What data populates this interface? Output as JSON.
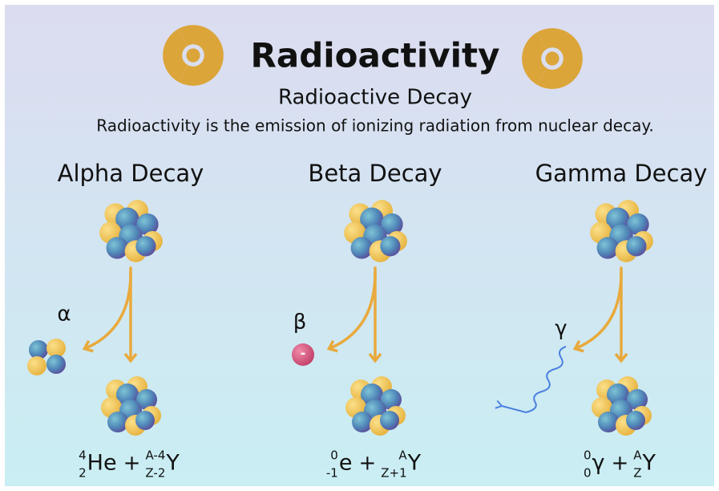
{
  "header": {
    "title": "Radioactivity",
    "subtitle": "Radioactive Decay",
    "description": "Radioactivity is the emission of ionizing radiation from nuclear decay."
  },
  "columns": [
    {
      "heading": "Alpha Decay",
      "particle": "α",
      "equation": {
        "terms": [
          {
            "mass": "4",
            "atomic": "2",
            "symbol": "He"
          },
          {
            "mass": "A-4",
            "atomic": "Z-2",
            "symbol": "Y"
          }
        ],
        "operator": "+"
      }
    },
    {
      "heading": "Beta Decay",
      "particle": "β",
      "charge": "-",
      "equation": {
        "terms": [
          {
            "mass": "0",
            "atomic": "-1",
            "symbol": "e"
          },
          {
            "mass": "A",
            "atomic": "Z+1",
            "symbol": "Y"
          }
        ],
        "operator": "+"
      }
    },
    {
      "heading": "Gamma Decay",
      "particle": "γ",
      "equation": {
        "terms": [
          {
            "mass": "0",
            "atomic": "0",
            "symbol": "γ"
          },
          {
            "mass": "A",
            "atomic": "Z",
            "symbol": "Y"
          }
        ],
        "operator": "+"
      }
    }
  ]
}
